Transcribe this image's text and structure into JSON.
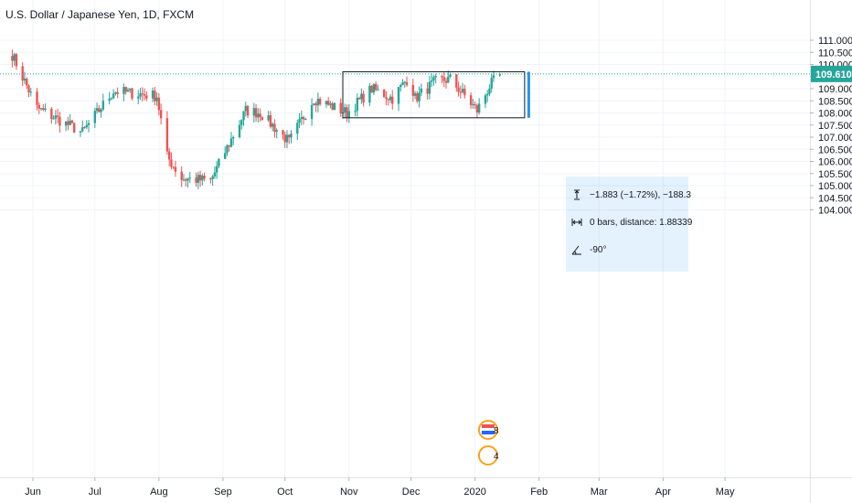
{
  "legend": {
    "symbol_title": "U.S. Dollar / Japanese Yen, 1D, FXCM"
  },
  "colors": {
    "up": "#26a69a",
    "down": "#ef5350",
    "current_price_line": "#26a69a",
    "measure_bar": "#2196f3",
    "rectangle": "#131722",
    "grid": "#f0f3fa"
  },
  "price_axis": {
    "labels": [
      "111.000",
      "110.500",
      "110.000",
      "109.500",
      "109.000",
      "108.500",
      "108.000",
      "107.500",
      "107.000",
      "106.500",
      "106.000",
      "105.500",
      "105.000",
      "104.500",
      "104.000"
    ],
    "current_price": "109.610"
  },
  "time_axis": {
    "labels": [
      "Jun",
      "Jul",
      "Aug",
      "Sep",
      "Oct",
      "Nov",
      "Dec",
      "2020",
      "Feb",
      "Mar",
      "Apr",
      "May"
    ]
  },
  "measure": {
    "price_change": "−1.883 (−1.72%), −188.3",
    "bars_distance": "0 bars, distance: 1.88339",
    "angle": "-90°",
    "icons": [
      "vertical-range-icon",
      "horizontal-range-icon",
      "angle-icon"
    ]
  },
  "events": [
    {
      "icon": "us-flag-icon",
      "count": "8"
    },
    {
      "icon": "calendar-event-icon",
      "count": "4"
    }
  ],
  "chart_data": {
    "type": "candlestick",
    "symbol": "USD/JPY",
    "ylim": [
      103.8,
      111.3
    ],
    "x_start": "2019-05-20",
    "key_points": [
      {
        "date": "2019-05-22",
        "close": 110.4
      },
      {
        "date": "2019-06-03",
        "close": 108.2
      },
      {
        "date": "2019-06-25",
        "close": 107.2
      },
      {
        "date": "2019-07-10",
        "close": 108.9
      },
      {
        "date": "2019-07-31",
        "close": 108.7
      },
      {
        "date": "2019-08-05",
        "close": 106.2
      },
      {
        "date": "2019-08-12",
        "close": 105.3
      },
      {
        "date": "2019-08-26",
        "close": 105.2
      },
      {
        "date": "2019-09-12",
        "close": 108.1
      },
      {
        "date": "2019-09-19",
        "close": 108.0
      },
      {
        "date": "2019-10-03",
        "close": 106.8
      },
      {
        "date": "2019-10-15",
        "close": 108.6
      },
      {
        "date": "2019-10-31",
        "close": 108.0
      },
      {
        "date": "2019-11-12",
        "close": 109.0
      },
      {
        "date": "2019-11-22",
        "close": 108.6
      },
      {
        "date": "2019-11-30",
        "close": 109.5
      },
      {
        "date": "2019-12-03",
        "close": 108.6
      },
      {
        "date": "2019-12-13",
        "close": 109.3
      },
      {
        "date": "2019-12-20",
        "close": 109.4
      },
      {
        "date": "2020-01-02",
        "close": 108.1
      },
      {
        "date": "2020-01-08",
        "close": 109.1
      },
      {
        "date": "2020-01-13",
        "close": 109.61
      }
    ],
    "rectangle": {
      "from": "2019-10-29",
      "to": "2020-01-25",
      "high": 109.7,
      "low": 107.8
    },
    "measure_range": {
      "date": "2020-01-27",
      "from": 109.7,
      "to": 107.8
    }
  }
}
